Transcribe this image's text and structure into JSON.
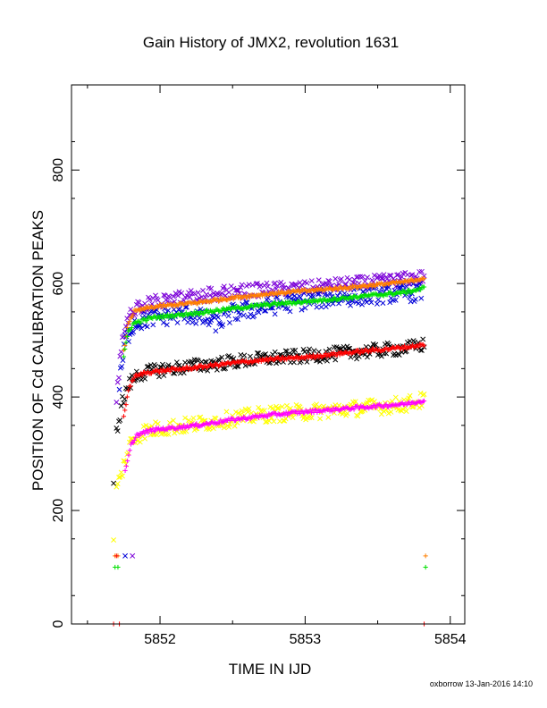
{
  "chart_data": {
    "type": "scatter",
    "title": "Gain History of JMX2, revolution 1631",
    "xlabel": "TIME IN IJD",
    "ylabel": "POSITION OF Cd CALIBRATION PEAKS",
    "xlim": [
      5851.39,
      5854.1
    ],
    "ylim": [
      0,
      950
    ],
    "x_tick_values": [
      5852,
      5853,
      5854
    ],
    "x_tick_labels": [
      "5852",
      "5853",
      "5854"
    ],
    "y_tick_values": [
      0,
      200,
      400,
      600,
      800
    ],
    "y_tick_labels": [
      "0",
      "200",
      "400",
      "600",
      "800"
    ],
    "grid": false,
    "legend": "none",
    "footer": "oxborrow 13-Jan-2016 14:10",
    "series": [
      {
        "marker": "x",
        "color": "#7b00d8",
        "values": [
          [
            5851.7,
            400
          ],
          [
            5851.72,
            450
          ],
          [
            5851.74,
            510
          ],
          [
            5851.78,
            540
          ],
          [
            5851.85,
            560
          ],
          [
            5852.0,
            570
          ],
          [
            5852.25,
            578
          ],
          [
            5852.5,
            585
          ],
          [
            5852.75,
            590
          ],
          [
            5853.0,
            592
          ],
          [
            5853.25,
            598
          ],
          [
            5853.5,
            603
          ],
          [
            5853.7,
            608
          ],
          [
            5853.82,
            612
          ]
        ],
        "spread": 12
      },
      {
        "marker": "x",
        "color": "#0000d8",
        "values": [
          [
            5851.72,
            420
          ],
          [
            5851.76,
            500
          ],
          [
            5851.82,
            530
          ],
          [
            5851.95,
            540
          ],
          [
            5852.2,
            546
          ],
          [
            5852.4,
            530
          ],
          [
            5852.5,
            548
          ],
          [
            5852.75,
            560
          ],
          [
            5853.0,
            570
          ],
          [
            5853.2,
            575
          ],
          [
            5853.4,
            578
          ],
          [
            5853.6,
            582
          ],
          [
            5853.8,
            585
          ]
        ],
        "spread": 16
      },
      {
        "marker": "+",
        "color": "#ff7f00",
        "values": [
          [
            5851.75,
            480
          ],
          [
            5851.78,
            530
          ],
          [
            5851.82,
            550
          ],
          [
            5851.9,
            556
          ],
          [
            5852.0,
            560
          ],
          [
            5852.25,
            566
          ],
          [
            5852.5,
            575
          ],
          [
            5852.75,
            582
          ],
          [
            5853.0,
            587
          ],
          [
            5853.25,
            592
          ],
          [
            5853.5,
            598
          ],
          [
            5853.7,
            603
          ],
          [
            5853.82,
            610
          ]
        ],
        "spread": 3
      },
      {
        "marker": "+",
        "color": "#00e000",
        "values": [
          [
            5851.75,
            470
          ],
          [
            5851.78,
            515
          ],
          [
            5851.82,
            530
          ],
          [
            5851.95,
            540
          ],
          [
            5852.25,
            548
          ],
          [
            5852.5,
            556
          ],
          [
            5852.75,
            563
          ],
          [
            5853.0,
            568
          ],
          [
            5853.25,
            574
          ],
          [
            5853.5,
            580
          ],
          [
            5853.7,
            585
          ],
          [
            5853.82,
            592
          ]
        ],
        "spread": 3
      },
      {
        "marker": "x",
        "color": "#000000",
        "values": [
          [
            5851.7,
            340
          ],
          [
            5851.74,
            390
          ],
          [
            5851.78,
            420
          ],
          [
            5851.85,
            440
          ],
          [
            5852.0,
            448
          ],
          [
            5852.25,
            455
          ],
          [
            5852.5,
            462
          ],
          [
            5852.75,
            468
          ],
          [
            5853.0,
            472
          ],
          [
            5853.25,
            477
          ],
          [
            5853.5,
            482
          ],
          [
            5853.7,
            486
          ],
          [
            5853.82,
            492
          ]
        ],
        "spread": 12
      },
      {
        "marker": "+",
        "color": "#ff0000",
        "values": [
          [
            5851.75,
            365
          ],
          [
            5851.78,
            410
          ],
          [
            5851.82,
            435
          ],
          [
            5851.9,
            443
          ],
          [
            5852.0,
            446
          ],
          [
            5852.25,
            452
          ],
          [
            5852.5,
            460
          ],
          [
            5852.75,
            466
          ],
          [
            5853.0,
            470
          ],
          [
            5853.25,
            477
          ],
          [
            5853.5,
            483
          ],
          [
            5853.7,
            488
          ],
          [
            5853.82,
            492
          ]
        ],
        "spread": 3
      },
      {
        "marker": "x",
        "color": "#ffff00",
        "values": [
          [
            5851.7,
            235
          ],
          [
            5851.75,
            280
          ],
          [
            5851.8,
            320
          ],
          [
            5851.88,
            338
          ],
          [
            5852.0,
            345
          ],
          [
            5852.25,
            352
          ],
          [
            5852.5,
            362
          ],
          [
            5852.75,
            370
          ],
          [
            5853.0,
            373
          ],
          [
            5853.25,
            378
          ],
          [
            5853.5,
            383
          ],
          [
            5853.7,
            388
          ],
          [
            5853.82,
            395
          ]
        ],
        "spread": 14
      },
      {
        "marker": "+",
        "color": "#ff00ff",
        "values": [
          [
            5851.76,
            268
          ],
          [
            5851.8,
            315
          ],
          [
            5851.84,
            333
          ],
          [
            5851.95,
            342
          ],
          [
            5852.25,
            350
          ],
          [
            5852.5,
            360
          ],
          [
            5852.75,
            368
          ],
          [
            5853.0,
            374
          ],
          [
            5853.25,
            379
          ],
          [
            5853.5,
            384
          ],
          [
            5853.7,
            388
          ],
          [
            5853.82,
            394
          ]
        ],
        "spread": 3
      }
    ],
    "isolated_points": [
      {
        "marker": "x",
        "color": "#000000",
        "x": 5851.68,
        "y": 248
      },
      {
        "marker": "x",
        "color": "#ffff00",
        "x": 5851.68,
        "y": 148
      },
      {
        "marker": "+",
        "color": "#ff7f00",
        "x": 5851.69,
        "y": 120
      },
      {
        "marker": "+",
        "color": "#ff7f00",
        "x": 5851.71,
        "y": 120
      },
      {
        "marker": "+",
        "color": "#ff0000",
        "x": 5851.7,
        "y": 120
      },
      {
        "marker": "x",
        "color": "#0000d8",
        "x": 5851.76,
        "y": 120
      },
      {
        "marker": "x",
        "color": "#7b00d8",
        "x": 5851.81,
        "y": 120
      },
      {
        "marker": "+",
        "color": "#00e000",
        "x": 5851.69,
        "y": 100
      },
      {
        "marker": "+",
        "color": "#00e000",
        "x": 5851.71,
        "y": 100
      },
      {
        "marker": "+",
        "color": "#ff7f00",
        "x": 5853.83,
        "y": 120
      },
      {
        "marker": "+",
        "color": "#00e000",
        "x": 5853.83,
        "y": 100
      },
      {
        "marker": "+",
        "color": "#ff0000",
        "x": 5851.68,
        "y": 0
      },
      {
        "marker": "+",
        "color": "#ff0000",
        "x": 5851.72,
        "y": 0
      },
      {
        "marker": "+",
        "color": "#ff0000",
        "x": 5853.82,
        "y": 0
      }
    ]
  }
}
